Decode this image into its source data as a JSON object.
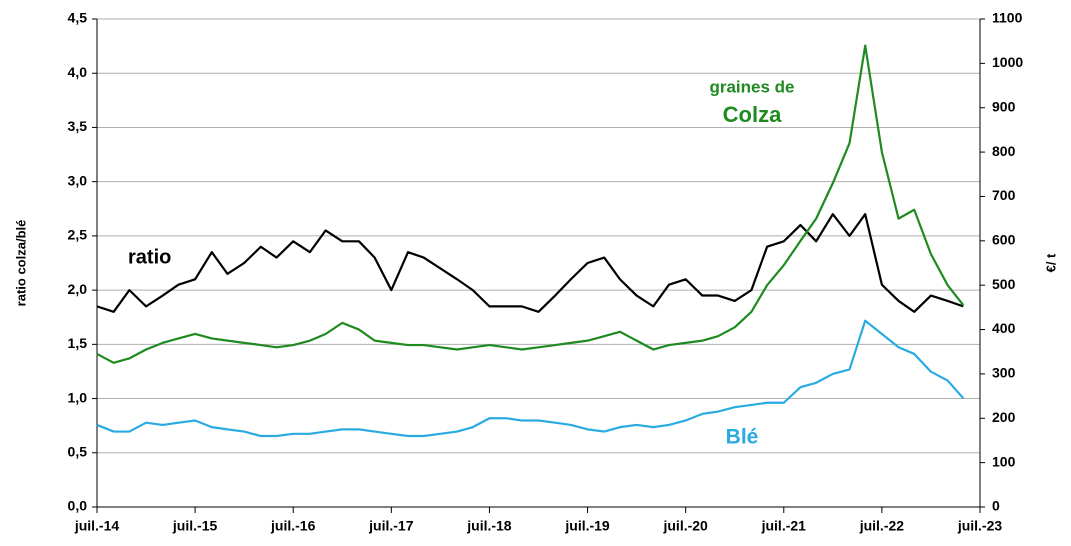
{
  "chart_data": {
    "type": "line",
    "y_label": "ratio colza/blé",
    "y2_label": "€/ t",
    "annotations": [
      "ratio",
      "graines de",
      "Colza",
      "Blé"
    ],
    "xlim": [
      2014.5,
      2023.5
    ],
    "xticks": [
      {
        "value": 2014.5,
        "label": "juil.-14"
      },
      {
        "value": 2015.5,
        "label": "juil.-15"
      },
      {
        "value": 2016.5,
        "label": "juil.-16"
      },
      {
        "value": 2017.5,
        "label": "juil.-17"
      },
      {
        "value": 2018.5,
        "label": "juil.-18"
      },
      {
        "value": 2019.5,
        "label": "juil.-19"
      },
      {
        "value": 2020.5,
        "label": "juil.-20"
      },
      {
        "value": 2021.5,
        "label": "juil.-21"
      },
      {
        "value": 2022.5,
        "label": "juil.-22"
      },
      {
        "value": 2023.5,
        "label": "juil.-23"
      }
    ],
    "ylim": [
      0,
      4.5
    ],
    "yticks": [
      {
        "value": 0,
        "label": "0,0"
      },
      {
        "value": 0.5,
        "label": "0,5"
      },
      {
        "value": 1,
        "label": "1,0"
      },
      {
        "value": 1.5,
        "label": "1,5"
      },
      {
        "value": 2,
        "label": "2,0"
      },
      {
        "value": 2.5,
        "label": "2,5"
      },
      {
        "value": 3,
        "label": "3,0"
      },
      {
        "value": 3.5,
        "label": "3,5"
      },
      {
        "value": 4,
        "label": "4,0"
      },
      {
        "value": 4.5,
        "label": "4,5"
      }
    ],
    "y2lim": [
      0,
      1100
    ],
    "y2ticks": [
      0,
      100,
      200,
      300,
      400,
      500,
      600,
      700,
      800,
      900,
      1000,
      1100
    ],
    "grid": true,
    "x": [
      2014.5,
      2014.67,
      2014.83,
      2015,
      2015.17,
      2015.33,
      2015.5,
      2015.67,
      2015.83,
      2016,
      2016.17,
      2016.33,
      2016.5,
      2016.67,
      2016.83,
      2017,
      2017.17,
      2017.33,
      2017.5,
      2017.67,
      2017.83,
      2018,
      2018.17,
      2018.33,
      2018.5,
      2018.67,
      2018.83,
      2019,
      2019.17,
      2019.33,
      2019.5,
      2019.67,
      2019.83,
      2020,
      2020.17,
      2020.33,
      2020.5,
      2020.67,
      2020.83,
      2021,
      2021.17,
      2021.33,
      2021.5,
      2021.67,
      2021.83,
      2022,
      2022.17,
      2022.33,
      2022.5,
      2022.67,
      2022.83,
      2023,
      2023.17,
      2023.33
    ],
    "series": [
      {
        "color": "#000000",
        "axis": "y",
        "values": [
          1.85,
          1.8,
          2.0,
          1.85,
          1.95,
          2.05,
          2.1,
          2.35,
          2.15,
          2.25,
          2.4,
          2.3,
          2.45,
          2.35,
          2.55,
          2.45,
          2.45,
          2.3,
          2.0,
          2.35,
          2.3,
          2.2,
          2.1,
          2.0,
          1.85,
          1.85,
          1.85,
          1.8,
          1.95,
          2.1,
          2.25,
          2.3,
          2.1,
          1.95,
          1.85,
          2.05,
          2.1,
          1.95,
          1.95,
          1.9,
          2.0,
          2.4,
          2.45,
          2.6,
          2.45,
          2.7,
          2.5,
          2.7,
          2.05,
          1.9,
          1.8,
          1.95,
          1.9,
          1.85
        ]
      },
      {
        "color": "#1f8a1f",
        "axis": "y2",
        "values": [
          345,
          325,
          335,
          355,
          370,
          380,
          390,
          380,
          375,
          370,
          365,
          360,
          365,
          375,
          390,
          415,
          400,
          375,
          370,
          365,
          365,
          360,
          355,
          360,
          365,
          360,
          355,
          360,
          365,
          370,
          375,
          385,
          395,
          375,
          355,
          365,
          370,
          375,
          385,
          405,
          440,
          500,
          545,
          600,
          650,
          730,
          820,
          1040,
          800,
          650,
          670,
          570,
          500,
          455
        ]
      },
      {
        "color": "#29abe2",
        "axis": "y2",
        "values": [
          185,
          170,
          170,
          190,
          185,
          190,
          195,
          180,
          175,
          170,
          160,
          160,
          165,
          165,
          170,
          175,
          175,
          170,
          165,
          160,
          160,
          165,
          170,
          180,
          200,
          200,
          195,
          195,
          190,
          185,
          175,
          170,
          180,
          185,
          180,
          185,
          195,
          210,
          215,
          225,
          230,
          235,
          235,
          270,
          280,
          300,
          310,
          420,
          390,
          360,
          345,
          305,
          285,
          245
        ]
      }
    ]
  }
}
